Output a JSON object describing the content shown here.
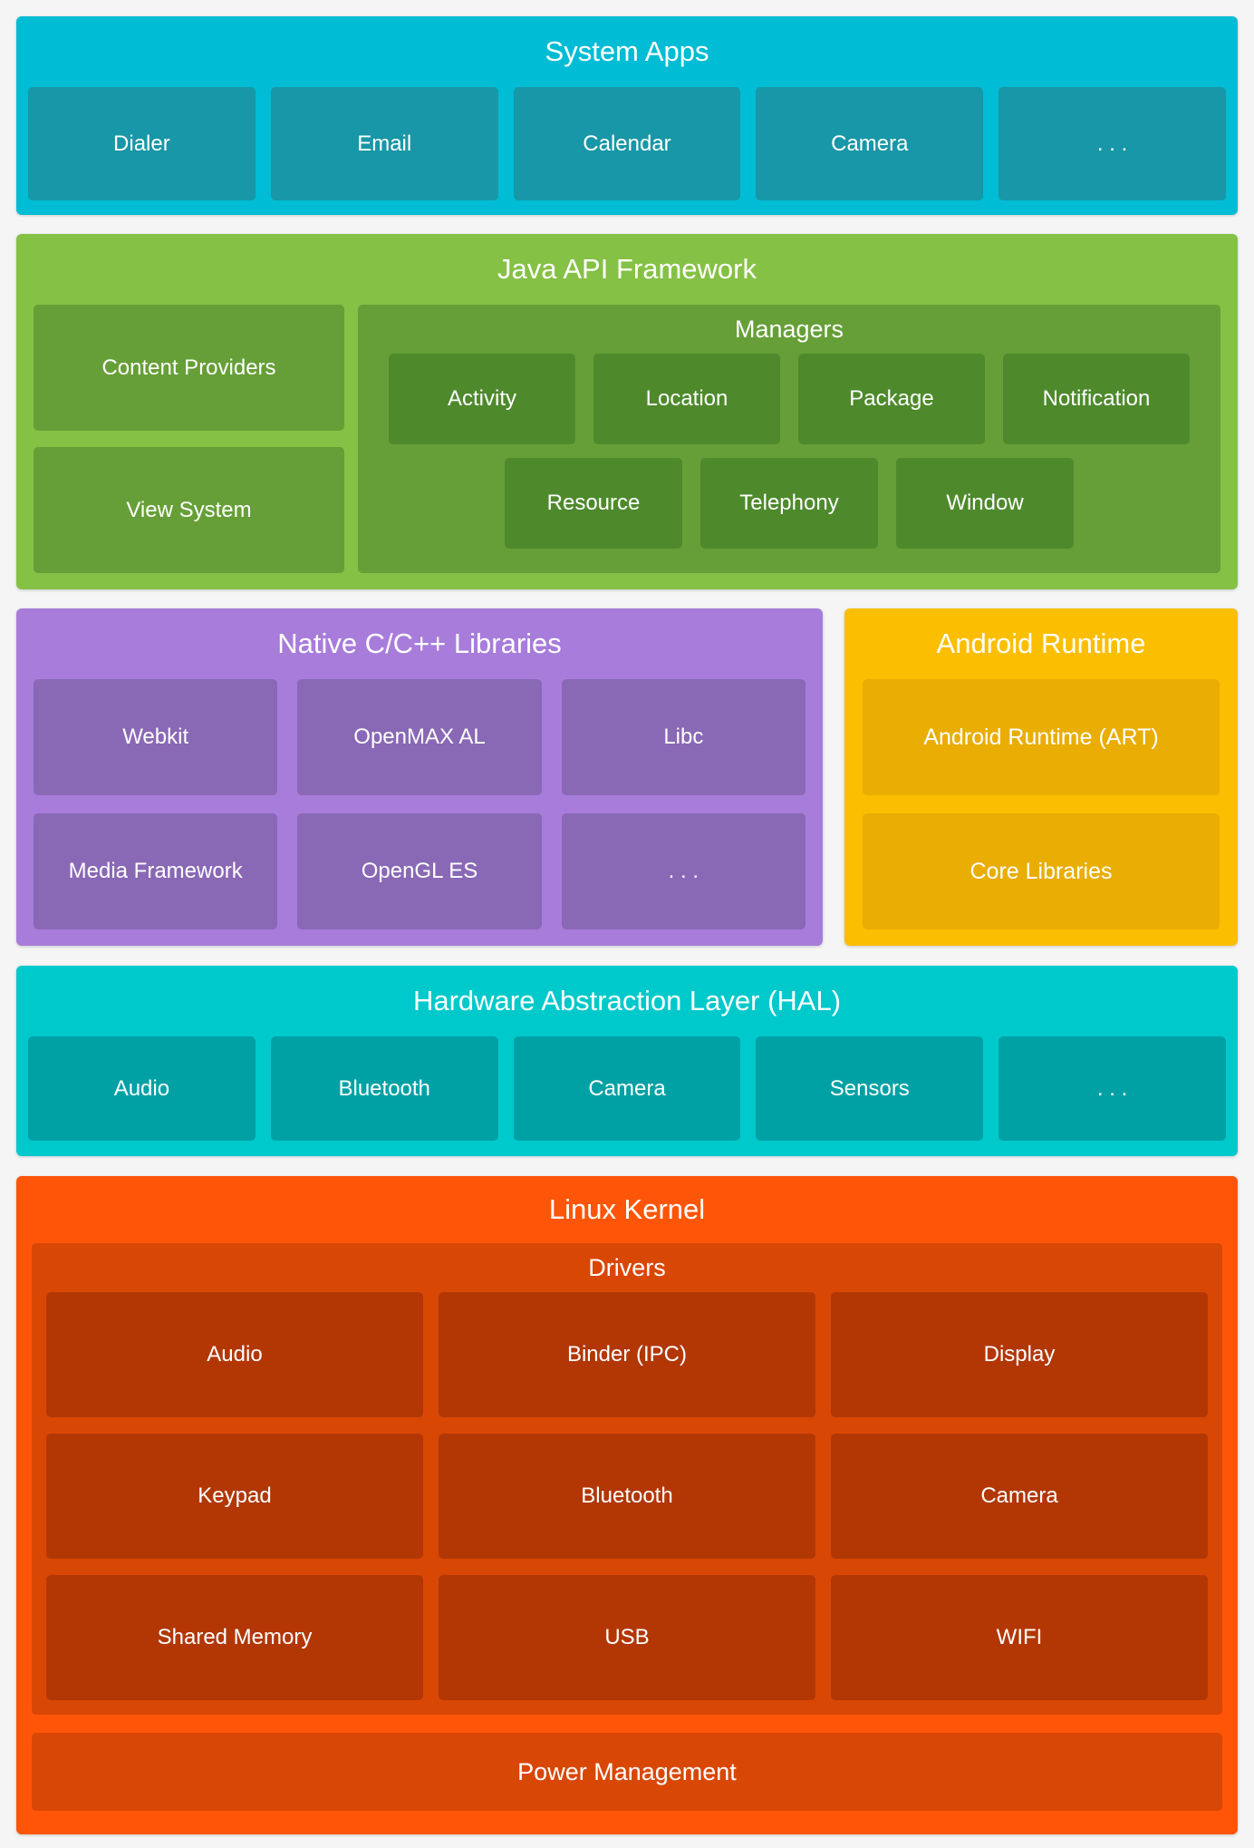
{
  "colors": {
    "page_bg": "#f4f5f4",
    "system_apps_bg": "#00bcd4",
    "system_apps_chip": "#1797a7",
    "java_bg": "#85c145",
    "java_box": "#669f37",
    "java_chip": "#4e8a2c",
    "native_bg": "#a87cda",
    "native_chip": "#8968b6",
    "runtime_bg": "#fcbe00",
    "runtime_chip": "#e9ad03",
    "hal_bg": "#00c9cc",
    "hal_chip": "#00a1a5",
    "kernel_bg": "#fe5508",
    "kernel_box": "#d94705",
    "kernel_chip": "#b23705",
    "text": "#ffffff"
  },
  "system_apps": {
    "title": "System Apps",
    "chips": [
      "Dialer",
      "Email",
      "Calendar",
      "Camera",
      ". . ."
    ]
  },
  "java_api": {
    "title": "Java API Framework",
    "left": [
      "Content Providers",
      "View System"
    ],
    "managers": {
      "title": "Managers",
      "row1": [
        "Activity",
        "Location",
        "Package",
        "Notification"
      ],
      "row2": [
        "Resource",
        "Telephony",
        "Window"
      ]
    }
  },
  "native_libs": {
    "title": "Native C/C++ Libraries",
    "row1": [
      "Webkit",
      "OpenMAX AL",
      "Libc"
    ],
    "row2": [
      "Media Framework",
      "OpenGL ES",
      ". . ."
    ]
  },
  "android_runtime": {
    "title": "Android Runtime",
    "boxes": [
      "Android Runtime (ART)",
      "Core Libraries"
    ]
  },
  "hal": {
    "title": "Hardware Abstraction Layer (HAL)",
    "chips": [
      "Audio",
      "Bluetooth",
      "Camera",
      "Sensors",
      ". . ."
    ]
  },
  "linux_kernel": {
    "title": "Linux Kernel",
    "drivers": {
      "title": "Drivers",
      "rows": [
        [
          "Audio",
          "Binder (IPC)",
          "Display"
        ],
        [
          "Keypad",
          "Bluetooth",
          "Camera"
        ],
        [
          "Shared Memory",
          "USB",
          "WIFI"
        ]
      ]
    },
    "power": "Power Management"
  }
}
